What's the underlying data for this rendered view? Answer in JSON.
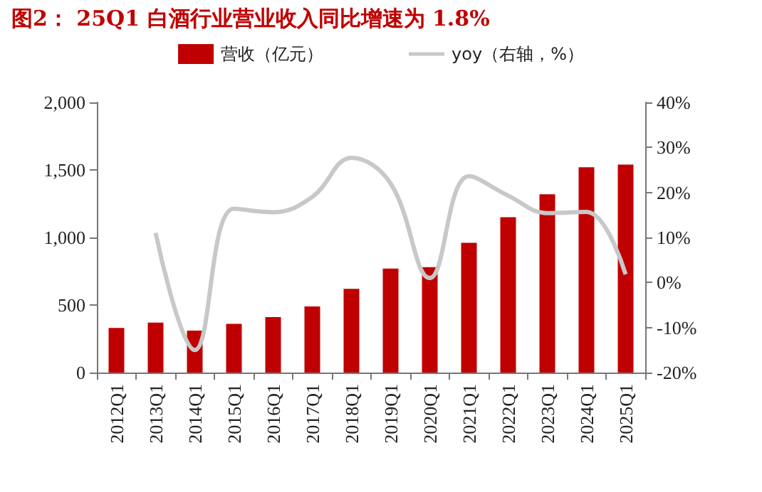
{
  "chart_data": {
    "type": "bar",
    "title": "图2：  25Q1 白酒行业营业收入同比增速为 1.8%",
    "categories": [
      "2012Q1",
      "2013Q1",
      "2014Q1",
      "2015Q1",
      "2016Q1",
      "2017Q1",
      "2018Q1",
      "2019Q1",
      "2020Q1",
      "2021Q1",
      "2022Q1",
      "2023Q1",
      "2024Q1",
      "2025Q1"
    ],
    "series": [
      {
        "name": "营收（亿元）",
        "color": "#c00000",
        "values": [
          330,
          370,
          310,
          360,
          410,
          490,
          620,
          770,
          780,
          960,
          1150,
          1320,
          1520,
          1540
        ]
      },
      {
        "name": "yoy（右轴，%）",
        "type": "line",
        "axis": "y2",
        "color": "#c8c8c8",
        "values": [
          null,
          11,
          -15,
          16.4,
          15.6,
          19,
          27.7,
          22,
          1,
          23.6,
          19.3,
          15.4,
          15.7,
          1.8
        ]
      }
    ],
    "ylim": [
      0,
      2000
    ],
    "yticks": [
      0,
      {
        "value": 500,
        "label": "500"
      },
      {
        "value": 1000,
        "label": "1,000"
      },
      {
        "value": 1500,
        "label": "1,500"
      },
      {
        "value": 2000,
        "label": "2,000"
      }
    ],
    "y2lim": [
      -20,
      40
    ],
    "y2ticks": [
      {
        "value": -20,
        "label": "-20%"
      },
      {
        "value": -10,
        "label": "-10%"
      },
      {
        "value": 0,
        "label": "0%"
      },
      {
        "value": 10,
        "label": "10%"
      },
      {
        "value": 20,
        "label": "20%"
      },
      {
        "value": 30,
        "label": "30%"
      },
      {
        "value": 40,
        "label": "40%"
      }
    ],
    "grid": false,
    "legend": "top",
    "marker": "none"
  }
}
